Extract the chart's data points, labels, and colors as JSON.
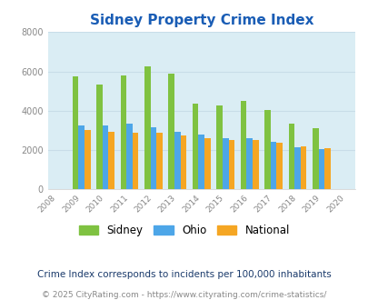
{
  "title": "Sidney Property Crime Index",
  "years": [
    2008,
    2009,
    2010,
    2011,
    2012,
    2013,
    2014,
    2015,
    2016,
    2017,
    2018,
    2019,
    2020
  ],
  "sidney": [
    null,
    5750,
    5350,
    5800,
    6250,
    5900,
    4350,
    4250,
    4500,
    4050,
    3350,
    3100,
    null
  ],
  "ohio": [
    null,
    3250,
    3250,
    3350,
    3150,
    2950,
    2800,
    2600,
    2600,
    2400,
    2150,
    2050,
    null
  ],
  "national": [
    null,
    3000,
    2950,
    2900,
    2900,
    2750,
    2600,
    2500,
    2500,
    2380,
    2200,
    2100,
    null
  ],
  "colors": {
    "sidney": "#7fc241",
    "ohio": "#4da6e8",
    "national": "#f5a623"
  },
  "ylim": [
    0,
    8000
  ],
  "yticks": [
    0,
    2000,
    4000,
    6000,
    8000
  ],
  "bg_color": "#daedf4",
  "subtitle": "Crime Index corresponds to incidents per 100,000 inhabitants",
  "footer": "© 2025 CityRating.com - https://www.cityrating.com/crime-statistics/",
  "title_color": "#1a5db5",
  "subtitle_color": "#1a3a6b",
  "footer_color": "#888888",
  "bar_width": 0.25,
  "grid_color": "#c8dde8"
}
